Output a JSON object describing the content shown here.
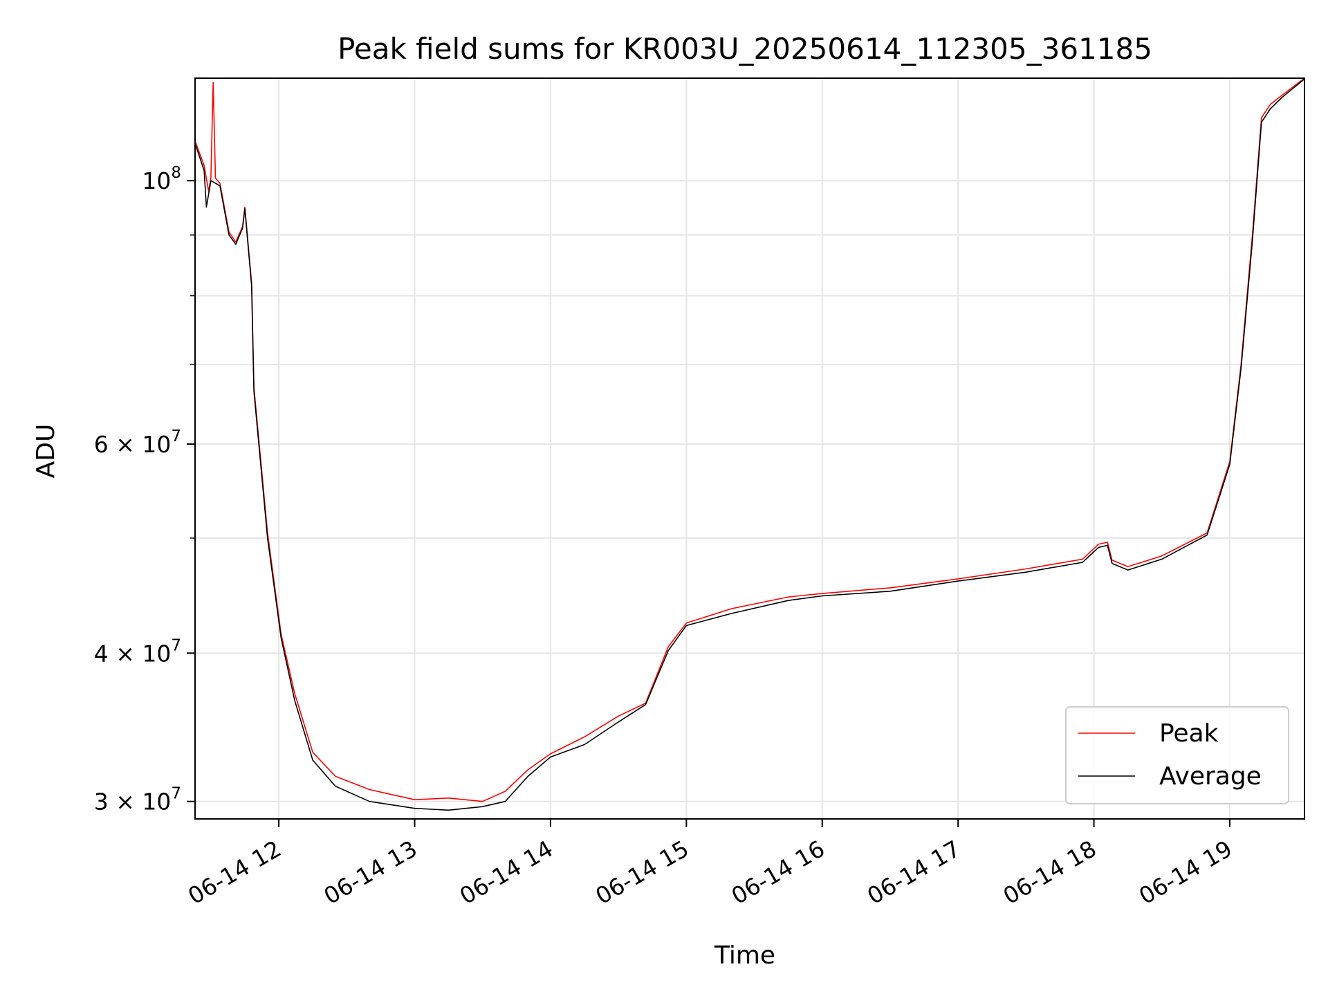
{
  "chart_data": {
    "type": "line",
    "title": "Peak field sums for KR003U_20250614_112305_361185",
    "xlabel": "Time",
    "ylabel": "ADU",
    "y_scale": "log",
    "ylim": [
      29000000,
      122000000
    ],
    "xlim": [
      "2025-06-14 11:23",
      "2025-06-14 19:33"
    ],
    "grid": true,
    "legend_position": "lower-right",
    "x_ticks": [
      {
        "t": "2025-06-14 12:00",
        "label": "06-14 12"
      },
      {
        "t": "2025-06-14 13:00",
        "label": "06-14 13"
      },
      {
        "t": "2025-06-14 14:00",
        "label": "06-14 14"
      },
      {
        "t": "2025-06-14 15:00",
        "label": "06-14 15"
      },
      {
        "t": "2025-06-14 16:00",
        "label": "06-14 16"
      },
      {
        "t": "2025-06-14 17:00",
        "label": "06-14 17"
      },
      {
        "t": "2025-06-14 18:00",
        "label": "06-14 18"
      },
      {
        "t": "2025-06-14 19:00",
        "label": "06-14 19"
      }
    ],
    "y_major_ticks": [
      {
        "value": 30000000,
        "base": "3 × 10",
        "exp": "7"
      },
      {
        "value": 40000000,
        "base": "4 × 10",
        "exp": "7"
      },
      {
        "value": 60000000,
        "base": "6 × 10",
        "exp": "7"
      },
      {
        "value": 100000000,
        "base": "10",
        "exp": "8"
      }
    ],
    "y_minor_ticks": [
      50000000,
      70000000,
      80000000,
      90000000
    ],
    "series": [
      {
        "name": "Peak",
        "color": "#ff0000",
        "points": [
          [
            "2025-06-14 11:23",
            108000000
          ],
          [
            "2025-06-14 11:27",
            103000000
          ],
          [
            "2025-06-14 11:29",
            98000000
          ],
          [
            "2025-06-14 11:30",
            100500000
          ],
          [
            "2025-06-14 11:31",
            121000000
          ],
          [
            "2025-06-14 11:32",
            100500000
          ],
          [
            "2025-06-14 11:34",
            99500000
          ],
          [
            "2025-06-14 11:38",
            90500000
          ],
          [
            "2025-06-14 11:41",
            88800000
          ],
          [
            "2025-06-14 11:44",
            91500000
          ],
          [
            "2025-06-14 11:45",
            95000000
          ],
          [
            "2025-06-14 11:48",
            82000000
          ],
          [
            "2025-06-14 11:49",
            67000000
          ],
          [
            "2025-06-14 11:55",
            50500000
          ],
          [
            "2025-06-14 12:01",
            41500000
          ],
          [
            "2025-06-14 12:07",
            37000000
          ],
          [
            "2025-06-14 12:15",
            33000000
          ],
          [
            "2025-06-14 12:25",
            31500000
          ],
          [
            "2025-06-14 12:40",
            30700000
          ],
          [
            "2025-06-14 13:00",
            30100000
          ],
          [
            "2025-06-14 13:15",
            30200000
          ],
          [
            "2025-06-14 13:30",
            30000000
          ],
          [
            "2025-06-14 13:40",
            30600000
          ],
          [
            "2025-06-14 13:50",
            31900000
          ],
          [
            "2025-06-14 14:00",
            32900000
          ],
          [
            "2025-06-14 14:15",
            34000000
          ],
          [
            "2025-06-14 14:30",
            35400000
          ],
          [
            "2025-06-14 14:42",
            36300000
          ],
          [
            "2025-06-14 14:52",
            40500000
          ],
          [
            "2025-06-14 15:00",
            42400000
          ],
          [
            "2025-06-14 15:20",
            43600000
          ],
          [
            "2025-06-14 15:45",
            44600000
          ],
          [
            "2025-06-14 16:00",
            44900000
          ],
          [
            "2025-06-14 16:30",
            45400000
          ],
          [
            "2025-06-14 17:00",
            46200000
          ],
          [
            "2025-06-14 17:30",
            47100000
          ],
          [
            "2025-06-14 17:55",
            48000000
          ],
          [
            "2025-06-14 18:02",
            49400000
          ],
          [
            "2025-06-14 18:06",
            49600000
          ],
          [
            "2025-06-14 18:08",
            47900000
          ],
          [
            "2025-06-14 18:15",
            47300000
          ],
          [
            "2025-06-14 18:30",
            48300000
          ],
          [
            "2025-06-14 18:50",
            50500000
          ],
          [
            "2025-06-14 19:00",
            58000000
          ],
          [
            "2025-06-14 19:05",
            70000000
          ],
          [
            "2025-06-14 19:10",
            90000000
          ],
          [
            "2025-06-14 19:14",
            113000000
          ],
          [
            "2025-06-14 19:18",
            116000000
          ],
          [
            "2025-06-14 19:23",
            118000000
          ],
          [
            "2025-06-14 19:33",
            122000000
          ]
        ]
      },
      {
        "name": "Average",
        "color": "#000000",
        "points": [
          [
            "2025-06-14 11:23",
            107500000
          ],
          [
            "2025-06-14 11:27",
            102000000
          ],
          [
            "2025-06-14 11:28",
            95000000
          ],
          [
            "2025-06-14 11:30",
            100000000
          ],
          [
            "2025-06-14 11:34",
            99000000
          ],
          [
            "2025-06-14 11:38",
            90000000
          ],
          [
            "2025-06-14 11:41",
            88400000
          ],
          [
            "2025-06-14 11:44",
            91200000
          ],
          [
            "2025-06-14 11:45",
            94700000
          ],
          [
            "2025-06-14 11:48",
            81500000
          ],
          [
            "2025-06-14 11:49",
            66500000
          ],
          [
            "2025-06-14 11:55",
            50000000
          ],
          [
            "2025-06-14 12:01",
            41200000
          ],
          [
            "2025-06-14 12:07",
            36500000
          ],
          [
            "2025-06-14 12:15",
            32500000
          ],
          [
            "2025-06-14 12:25",
            30900000
          ],
          [
            "2025-06-14 12:40",
            30000000
          ],
          [
            "2025-06-14 13:00",
            29600000
          ],
          [
            "2025-06-14 13:15",
            29500000
          ],
          [
            "2025-06-14 13:30",
            29700000
          ],
          [
            "2025-06-14 13:40",
            30000000
          ],
          [
            "2025-06-14 13:50",
            31500000
          ],
          [
            "2025-06-14 14:00",
            32700000
          ],
          [
            "2025-06-14 14:15",
            33500000
          ],
          [
            "2025-06-14 14:30",
            35000000
          ],
          [
            "2025-06-14 14:42",
            36200000
          ],
          [
            "2025-06-14 14:52",
            40200000
          ],
          [
            "2025-06-14 15:00",
            42200000
          ],
          [
            "2025-06-14 15:20",
            43200000
          ],
          [
            "2025-06-14 15:45",
            44300000
          ],
          [
            "2025-06-14 16:00",
            44700000
          ],
          [
            "2025-06-14 16:30",
            45100000
          ],
          [
            "2025-06-14 17:00",
            46000000
          ],
          [
            "2025-06-14 17:30",
            46800000
          ],
          [
            "2025-06-14 17:55",
            47700000
          ],
          [
            "2025-06-14 18:02",
            49100000
          ],
          [
            "2025-06-14 18:06",
            49300000
          ],
          [
            "2025-06-14 18:08",
            47600000
          ],
          [
            "2025-06-14 18:15",
            47000000
          ],
          [
            "2025-06-14 18:30",
            48000000
          ],
          [
            "2025-06-14 18:50",
            50300000
          ],
          [
            "2025-06-14 19:00",
            57700000
          ],
          [
            "2025-06-14 19:05",
            69500000
          ],
          [
            "2025-06-14 19:10",
            89000000
          ],
          [
            "2025-06-14 19:14",
            112000000
          ],
          [
            "2025-06-14 19:18",
            115000000
          ],
          [
            "2025-06-14 19:23",
            117500000
          ],
          [
            "2025-06-14 19:33",
            121800000
          ]
        ]
      }
    ]
  }
}
